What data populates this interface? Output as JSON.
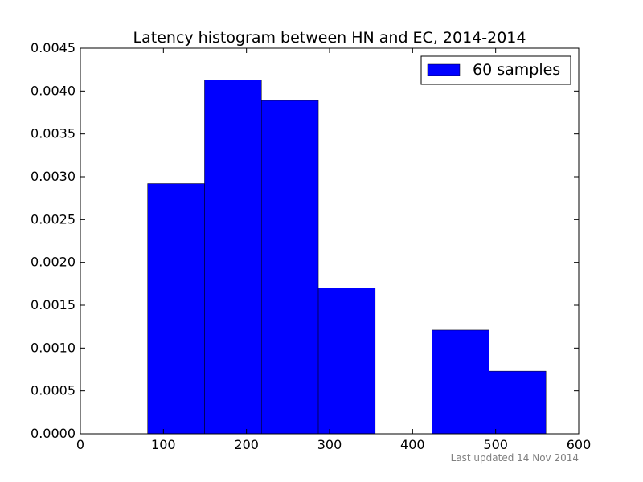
{
  "chart_data": {
    "type": "bar",
    "title": "Latency histogram between HN and EC, 2014-2014",
    "xlabel": "",
    "ylabel": "",
    "xlim": [
      0,
      600
    ],
    "ylim": [
      0,
      0.0045
    ],
    "xticks": [
      "0",
      "100",
      "200",
      "300",
      "400",
      "500",
      "600"
    ],
    "yticks": [
      "0.0000",
      "0.0005",
      "0.0010",
      "0.0015",
      "0.0020",
      "0.0025",
      "0.0030",
      "0.0035",
      "0.0040",
      "0.0045"
    ],
    "bins": [
      {
        "x0": 81,
        "x1": 149.5,
        "value": 0.00292
      },
      {
        "x0": 149.5,
        "x1": 218,
        "value": 0.00413
      },
      {
        "x0": 218,
        "x1": 286.5,
        "value": 0.00389
      },
      {
        "x0": 286.5,
        "x1": 355,
        "value": 0.0017
      },
      {
        "x0": 355,
        "x1": 423.5,
        "value": 0.0
      },
      {
        "x0": 423.5,
        "x1": 492,
        "value": 0.00121
      },
      {
        "x0": 492,
        "x1": 560.5,
        "value": 0.00073
      }
    ],
    "series": [
      {
        "name": "60 samples",
        "color": "#0000ff"
      }
    ],
    "legend": "top-right",
    "grid": false
  },
  "footnote": "Last updated 14 Nov 2014"
}
